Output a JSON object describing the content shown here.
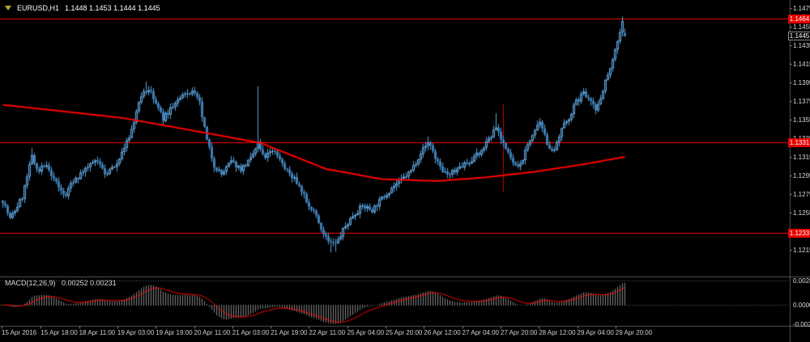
{
  "header": {
    "symbol": "EURUSD,H1",
    "quotes": "1.1448 1.1453 1.1444 1.1445"
  },
  "icons": {
    "corner_marker": "triangle-down"
  },
  "macd_panel": {
    "name": "MACD(12,26,9)",
    "values": "0.00252 0.00231"
  },
  "colors": {
    "background": "#000000",
    "candle_up": "#6ab1ec",
    "candle_down": "#3c7fb8",
    "wick": "#57a2dc",
    "ma_line": "#ff0000",
    "level_line": "#ff0000",
    "level_badge": "#e60000",
    "histogram": "#848484",
    "signal_line": "#ff0000",
    "axis_text": "#d8d8d8",
    "separator": "#565656"
  },
  "chart_data": [
    {
      "type": "candlestick",
      "symbol": "EURUSD",
      "timeframe": "H1",
      "ylim": [
        1.1187,
        1.1483
      ],
      "price_axis_labels": [
        "1.1475",
        "1.1455",
        "1.1435",
        "1.1415",
        "1.1395",
        "1.1375",
        "1.1355",
        "1.1335",
        "1.1315",
        "1.1295",
        "1.1275",
        "1.1255",
        "1.1235",
        "1.1215"
      ],
      "time_axis_labels": [
        "15 Apr 2016",
        "15 Apr 18:00",
        "18 Apr 11:00",
        "19 Apr 03:00",
        "19 Apr 19:00",
        "20 Apr 11:00",
        "21 Apr 03:00",
        "21 Apr 19:00",
        "22 Apr 11:00",
        "25 Apr 04:00",
        "25 Apr 20:00",
        "26 Apr 12:00",
        "27 Apr 04:00",
        "27 Apr 20:00",
        "28 Apr 12:00",
        "29 Apr 04:00",
        "29 Apr 20:00"
      ],
      "horizontal_lines": [
        "1.1464",
        "1.1331",
        "1.1233"
      ],
      "bid_price": "1.1445",
      "last_candle": {
        "open": 1.1448,
        "high": 1.1453,
        "low": 1.1444,
        "close": 1.1445
      },
      "candle_count": 257,
      "noise": 0.0006,
      "seed": 7,
      "close_path_anchors": [
        [
          0,
          1.1268
        ],
        [
          3,
          1.1248
        ],
        [
          8,
          1.1272
        ],
        [
          12,
          1.1315
        ],
        [
          15,
          1.13
        ],
        [
          18,
          1.1308
        ],
        [
          22,
          1.1286
        ],
        [
          25,
          1.1272
        ],
        [
          30,
          1.1292
        ],
        [
          34,
          1.13
        ],
        [
          38,
          1.1312
        ],
        [
          42,
          1.1296
        ],
        [
          47,
          1.131
        ],
        [
          52,
          1.1336
        ],
        [
          57,
          1.138
        ],
        [
          60,
          1.1388
        ],
        [
          63,
          1.1372
        ],
        [
          66,
          1.1356
        ],
        [
          70,
          1.137
        ],
        [
          74,
          1.138
        ],
        [
          78,
          1.1386
        ],
        [
          81,
          1.1372
        ],
        [
          84,
          1.1332
        ],
        [
          87,
          1.1306
        ],
        [
          90,
          1.1296
        ],
        [
          94,
          1.131
        ],
        [
          98,
          1.1302
        ],
        [
          102,
          1.1312
        ],
        [
          105,
          1.133
        ],
        [
          108,
          1.1316
        ],
        [
          112,
          1.1322
        ],
        [
          116,
          1.1302
        ],
        [
          120,
          1.1292
        ],
        [
          124,
          1.1272
        ],
        [
          128,
          1.1256
        ],
        [
          131,
          1.1236
        ],
        [
          134,
          1.1224
        ],
        [
          137,
          1.122
        ],
        [
          140,
          1.1236
        ],
        [
          144,
          1.1252
        ],
        [
          148,
          1.1262
        ],
        [
          152,
          1.1258
        ],
        [
          156,
          1.127
        ],
        [
          160,
          1.1282
        ],
        [
          164,
          1.129
        ],
        [
          168,
          1.13
        ],
        [
          172,
          1.132
        ],
        [
          175,
          1.133
        ],
        [
          178,
          1.1314
        ],
        [
          181,
          1.1298
        ],
        [
          184,
          1.1296
        ],
        [
          188,
          1.1304
        ],
        [
          192,
          1.131
        ],
        [
          196,
          1.132
        ],
        [
          200,
          1.1334
        ],
        [
          203,
          1.1348
        ],
        [
          206,
          1.133
        ],
        [
          209,
          1.1312
        ],
        [
          212,
          1.1302
        ],
        [
          215,
          1.132
        ],
        [
          218,
          1.134
        ],
        [
          221,
          1.135
        ],
        [
          224,
          1.133
        ],
        [
          227,
          1.132
        ],
        [
          230,
          1.1344
        ],
        [
          233,
          1.1358
        ],
        [
          236,
          1.1374
        ],
        [
          239,
          1.1384
        ],
        [
          242,
          1.1378
        ],
        [
          244,
          1.1364
        ],
        [
          246,
          1.138
        ],
        [
          249,
          1.1404
        ],
        [
          252,
          1.143
        ],
        [
          254,
          1.145
        ],
        [
          255,
          1.146
        ],
        [
          256,
          1.1445
        ]
      ],
      "ma_anchors": [
        [
          0,
          1.1371
        ],
        [
          49,
          1.1357
        ],
        [
          83,
          1.1341
        ],
        [
          106,
          1.133
        ],
        [
          133,
          1.1302
        ],
        [
          156,
          1.1291
        ],
        [
          179,
          1.1289
        ],
        [
          199,
          1.1293
        ],
        [
          219,
          1.1299
        ],
        [
          239,
          1.1307
        ],
        [
          256,
          1.1315
        ]
      ],
      "spikes": [
        {
          "i": 12,
          "h": 1.1325
        },
        {
          "i": 59,
          "h": 1.1396
        },
        {
          "i": 78,
          "h": 1.139
        },
        {
          "i": 105,
          "h": 1.1391
        },
        {
          "i": 135,
          "l": 1.1212
        },
        {
          "i": 137,
          "l": 1.1213
        },
        {
          "i": 175,
          "h": 1.1337
        },
        {
          "i": 203,
          "h": 1.1362
        },
        {
          "i": 255,
          "h": 1.1466
        },
        {
          "i": 256,
          "o": 1.1448,
          "h": 1.1453,
          "l": 1.1444,
          "c": 1.1445
        }
      ],
      "vertical_line": {
        "index": 206,
        "price_top": 1.1372,
        "price_bottom": 1.1277
      }
    },
    {
      "type": "bar",
      "name": "MACD(12,26,9)",
      "params": [
        12,
        26,
        9
      ],
      "current_macd": 0.00252,
      "current_signal": 0.00231,
      "axis_labels": [
        "0.0028",
        "0.0000",
        "-0.00227"
      ],
      "ylim": [
        -0.00227,
        0.0028
      ],
      "source": "histogram = EMA12(close) - EMA26(close); signal = EMA9(histogram)"
    }
  ]
}
